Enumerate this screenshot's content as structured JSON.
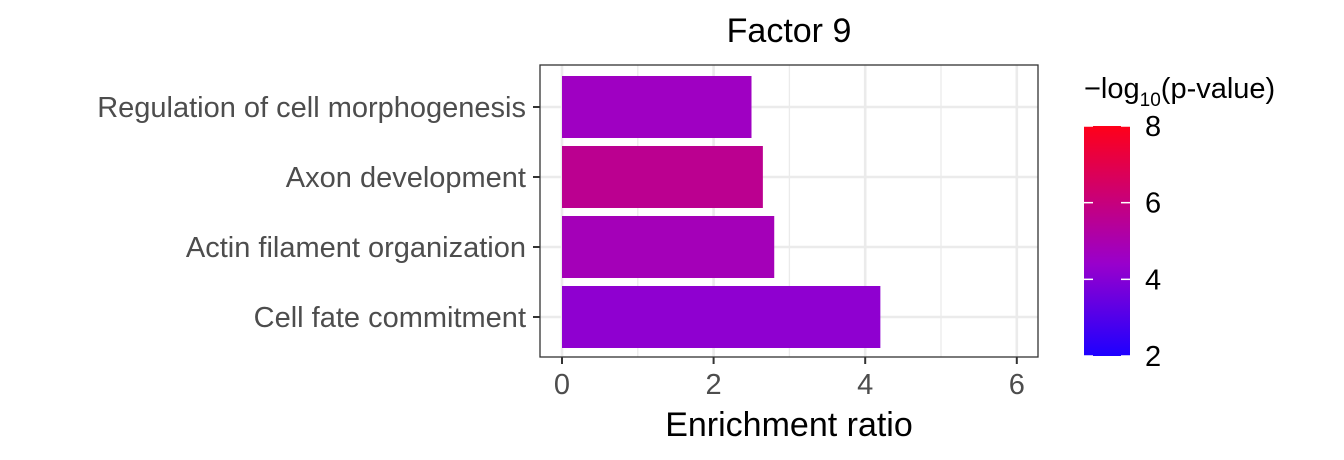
{
  "chart_data": {
    "type": "bar",
    "orientation": "horizontal",
    "title": "Factor 9",
    "xlabel": "Enrichment ratio",
    "ylabel": "",
    "xlim": [
      0,
      6
    ],
    "x_ticks": [
      "0",
      "2",
      "4",
      "6"
    ],
    "grid": true,
    "categories": [
      "Regulation of cell morphogenesis",
      "Axon development",
      "Actin filament organization",
      "Cell fate commitment"
    ],
    "values": [
      2.5,
      2.65,
      2.8,
      4.2
    ],
    "color_values": [
      4.6,
      5.6,
      4.8,
      4.2
    ],
    "colorbar": {
      "title_prefix": "−log",
      "title_sub": "10",
      "title_suffix": "(p-value)",
      "range": [
        2,
        8
      ],
      "ticks": [
        "2",
        "4",
        "6",
        "8"
      ],
      "low_color": "#1e00ff",
      "mid_color": "#9900cc",
      "high_color": "#ff0019"
    },
    "legend_position": "right"
  }
}
